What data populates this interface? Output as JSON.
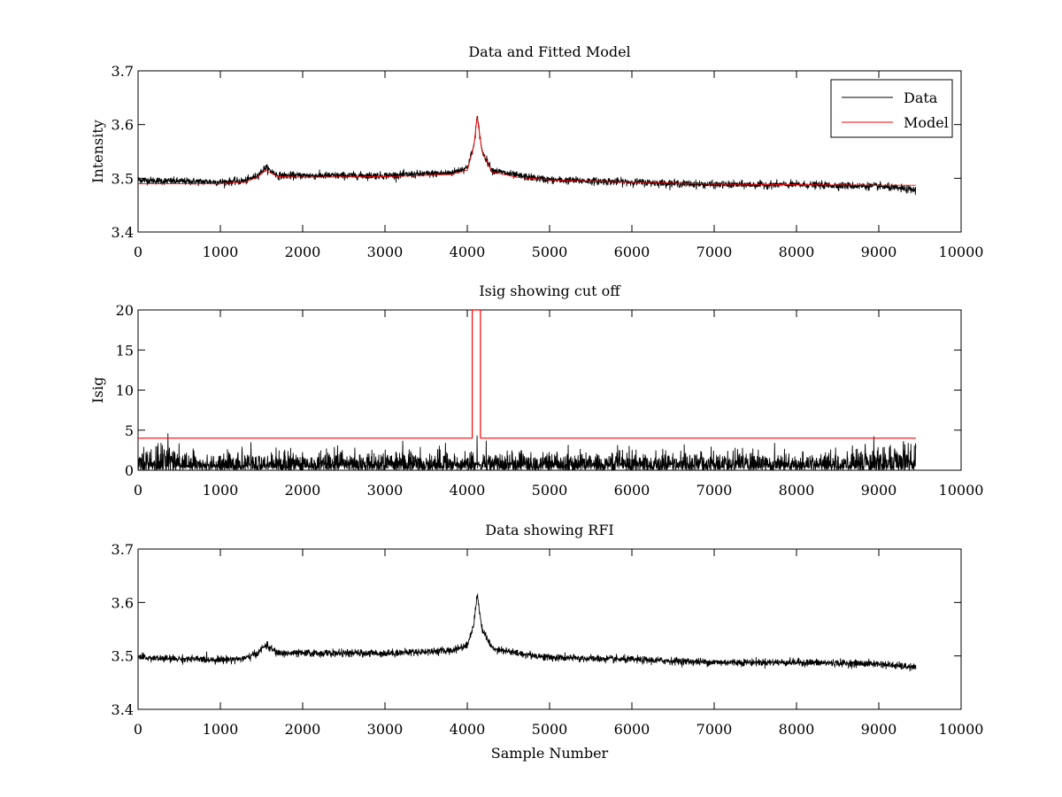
{
  "figure": {
    "type": "subplots",
    "rows": 3
  },
  "chart_data": [
    {
      "type": "line",
      "title": "Data and Fitted Model",
      "xlabel": "",
      "ylabel": "Intensity",
      "xlim": [
        0,
        10000
      ],
      "ylim": [
        3.4,
        3.7
      ],
      "xticks": [
        0,
        1000,
        2000,
        3000,
        4000,
        5000,
        6000,
        7000,
        8000,
        9000,
        10000
      ],
      "yticks": [
        3.4,
        3.5,
        3.6,
        3.7
      ],
      "grid": false,
      "legend": {
        "position": "top-right",
        "entries": [
          {
            "label": "Data",
            "color": "#000000"
          },
          {
            "label": "Model",
            "color": "#ff0000"
          }
        ]
      },
      "series": [
        {
          "name": "Data",
          "color": "#000000",
          "kind": "noisy",
          "x_range": [
            0,
            9450
          ],
          "noise_amplitude": 0.006,
          "keypoints": {
            "x": [
              0,
              300,
              1000,
              1300,
              1450,
              1550,
              1700,
              2000,
              3000,
              3800,
              4000,
              4080,
              4120,
              4180,
              4300,
              4600,
              5000,
              6000,
              7000,
              8000,
              9000,
              9450
            ],
            "y": [
              3.497,
              3.495,
              3.493,
              3.495,
              3.505,
              3.52,
              3.505,
              3.505,
              3.505,
              3.51,
              3.52,
              3.56,
              3.615,
              3.55,
              3.515,
              3.505,
              3.497,
              3.493,
              3.488,
              3.488,
              3.485,
              3.478
            ]
          }
        },
        {
          "name": "Model",
          "color": "#ff0000",
          "kind": "smooth",
          "x_range": [
            0,
            9450
          ],
          "keypoints": {
            "x": [
              0,
              300,
              1000,
              1300,
              1450,
              1550,
              1700,
              2000,
              3000,
              3800,
              4000,
              4080,
              4120,
              4180,
              4300,
              4600,
              5000,
              6000,
              7000,
              8000,
              9000,
              9450
            ],
            "y": [
              3.49,
              3.49,
              3.49,
              3.493,
              3.502,
              3.515,
              3.503,
              3.502,
              3.503,
              3.507,
              3.515,
              3.56,
              3.615,
              3.55,
              3.512,
              3.502,
              3.497,
              3.493,
              3.489,
              3.488,
              3.487,
              3.487
            ]
          }
        }
      ]
    },
    {
      "type": "line",
      "title": "Isig showing cut off",
      "xlabel": "",
      "ylabel": "Isig",
      "xlim": [
        0,
        10000
      ],
      "ylim": [
        0,
        20
      ],
      "xticks": [
        0,
        1000,
        2000,
        3000,
        4000,
        5000,
        6000,
        7000,
        8000,
        9000,
        10000
      ],
      "yticks": [
        0,
        5,
        10,
        15,
        20
      ],
      "grid": false,
      "series": [
        {
          "name": "Isig",
          "color": "#000000",
          "kind": "abs-noise",
          "x_range": [
            0,
            9450
          ],
          "noise_amplitude": 1.2,
          "spikes": {
            "x": [
              4120,
              8940,
              9300
            ],
            "y": [
              4.3,
              4.2,
              3.6
            ]
          }
        },
        {
          "name": "Cut off",
          "color": "#ff0000",
          "kind": "step",
          "x": [
            0,
            4060,
            4060,
            4160,
            4160,
            9450
          ],
          "y": [
            4,
            4,
            20,
            20,
            4,
            4
          ]
        }
      ]
    },
    {
      "type": "line",
      "title": "Data showing RFI",
      "xlabel": "Sample Number",
      "ylabel": "",
      "xlim": [
        0,
        10000
      ],
      "ylim": [
        3.4,
        3.7
      ],
      "xticks": [
        0,
        1000,
        2000,
        3000,
        4000,
        5000,
        6000,
        7000,
        8000,
        9000,
        10000
      ],
      "yticks": [
        3.4,
        3.5,
        3.6,
        3.7
      ],
      "grid": false,
      "series": [
        {
          "name": "Data",
          "color": "#000000",
          "kind": "noisy",
          "x_range": [
            0,
            9450
          ],
          "noise_amplitude": 0.006,
          "keypoints": {
            "x": [
              0,
              300,
              1000,
              1300,
              1450,
              1550,
              1700,
              2000,
              3000,
              3800,
              4000,
              4080,
              4120,
              4180,
              4300,
              4600,
              5000,
              6000,
              7000,
              8000,
              9000,
              9450
            ],
            "y": [
              3.497,
              3.495,
              3.493,
              3.495,
              3.505,
              3.52,
              3.505,
              3.505,
              3.505,
              3.51,
              3.52,
              3.56,
              3.615,
              3.55,
              3.515,
              3.505,
              3.497,
              3.493,
              3.488,
              3.488,
              3.485,
              3.478
            ]
          }
        }
      ]
    }
  ]
}
